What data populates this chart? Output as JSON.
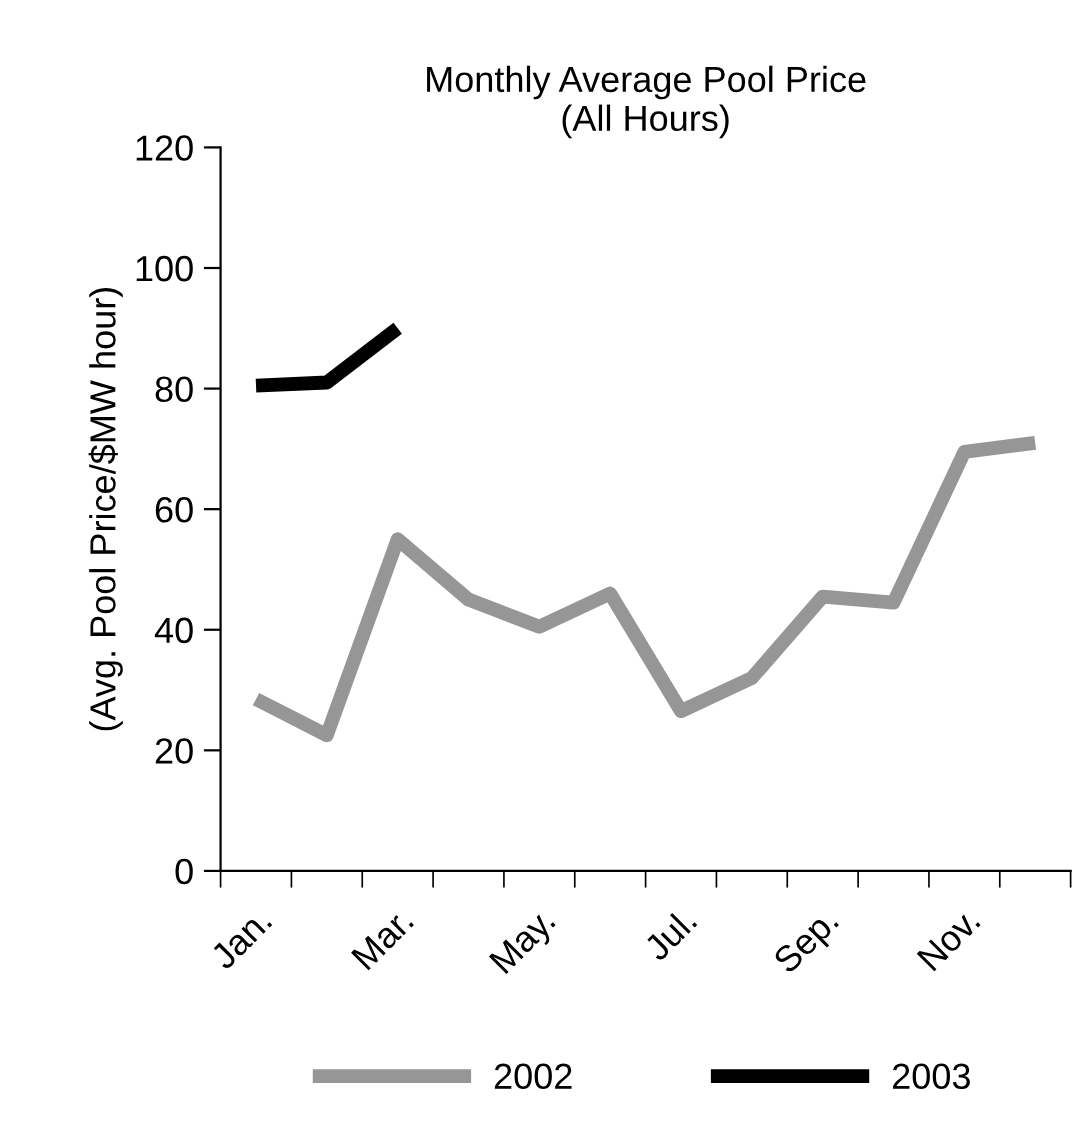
{
  "chart_data": {
    "type": "line",
    "title": "Monthly Average Pool Price\n(All Hours)",
    "ylabel": "(Avg. Pool Price/$MW hour)",
    "categories": [
      "Jan.",
      null,
      "Mar.",
      null,
      "May.",
      null,
      "Jul.",
      null,
      "Sep.",
      null,
      "Nov.",
      null
    ],
    "series": [
      {
        "name": "2002",
        "color": "#969696",
        "values": [
          28.5,
          22.5,
          55,
          45,
          40.5,
          46,
          26.5,
          32,
          45.5,
          44.5,
          69.5,
          71
        ]
      },
      {
        "name": "2003",
        "color": "#000000",
        "values": [
          80.5,
          81,
          90,
          null,
          null,
          null,
          null,
          null,
          null,
          null,
          null,
          null
        ]
      }
    ],
    "ylim": [
      0,
      120
    ],
    "yticks": [
      0,
      20,
      40,
      60,
      80,
      100,
      120
    ],
    "grid": false,
    "legend": "bottom",
    "marker": "none",
    "line_style": "solid"
  }
}
